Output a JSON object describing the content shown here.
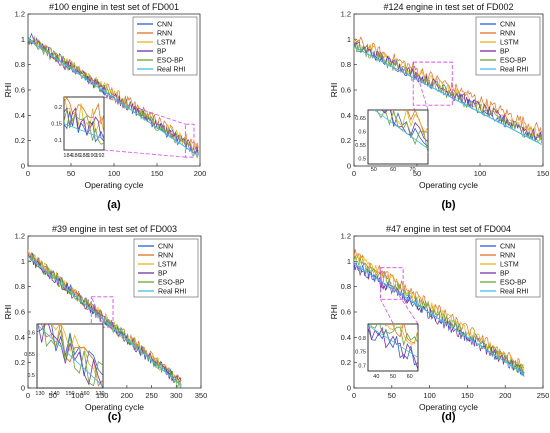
{
  "colors": {
    "CNN": "#2e5fd8",
    "RNN": "#e0702a",
    "LSTM": "#e8b320",
    "BP": "#7b2fa6",
    "ESO-BP": "#6aa53a",
    "Real RHI": "#3fc0e6",
    "zoom": "#d54fe6"
  },
  "chart_data": [
    {
      "type": "line",
      "panel_label": "(a)",
      "title": "#100 engine in test set of FD001",
      "xlabel": "Operating cycle",
      "ylabel": "RHI",
      "xlim": [
        0,
        200
      ],
      "ylim": [
        0,
        1.2
      ],
      "xticks": [
        0,
        50,
        100,
        150,
        200
      ],
      "yticks": [
        0,
        0.2,
        0.4,
        0.6,
        0.8,
        1.0,
        1.2
      ],
      "ytick_labels": [
        "0",
        "0.2",
        "0.4",
        "0.6",
        "0.8",
        "1",
        "1.2"
      ],
      "legend_position": "top-right",
      "series": [
        {
          "name": "CNN",
          "start": 1.02,
          "end": 0.1
        },
        {
          "name": "RNN",
          "start": 1.01,
          "end": 0.15
        },
        {
          "name": "LSTM",
          "start": 1.01,
          "end": 0.13
        },
        {
          "name": "BP",
          "start": 1.0,
          "end": 0.11
        },
        {
          "name": "ESO-BP",
          "start": 1.0,
          "end": 0.1
        },
        {
          "name": "Real RHI",
          "start": 1.0,
          "end": 0.08
        }
      ],
      "x_end": 198,
      "zoom": {
        "source_xlim": [
          183,
          193
        ],
        "source_ylim": [
          0.07,
          0.33
        ],
        "xticks": [
          184,
          186,
          188,
          190,
          192
        ],
        "yticks": [
          0.1,
          0.15,
          0.2
        ],
        "ylim": [
          0.07,
          0.23
        ]
      }
    },
    {
      "type": "line",
      "panel_label": "(b)",
      "title": "#124 engine in test set of FD002",
      "xlabel": "Operating cycle",
      "ylabel": "RHI",
      "xlim": [
        0,
        150
      ],
      "ylim": [
        0,
        1.2
      ],
      "xticks": [
        0,
        50,
        100,
        150
      ],
      "yticks": [
        0,
        0.2,
        0.4,
        0.6,
        0.8,
        1.0,
        1.2
      ],
      "ytick_labels": [
        "0",
        "0.2",
        "0.4",
        "0.6",
        "0.8",
        "1",
        "1.2"
      ],
      "legend_position": "top-right",
      "series": [
        {
          "name": "CNN",
          "start": 0.97,
          "end": 0.2
        },
        {
          "name": "RNN",
          "start": 1.0,
          "end": 0.28
        },
        {
          "name": "LSTM",
          "start": 0.98,
          "end": 0.24
        },
        {
          "name": "BP",
          "start": 0.96,
          "end": 0.22
        },
        {
          "name": "ESO-BP",
          "start": 0.95,
          "end": 0.2
        },
        {
          "name": "Real RHI",
          "start": 0.94,
          "end": 0.17
        }
      ],
      "x_end": 149,
      "zoom": {
        "source_xlim": [
          47,
          78
        ],
        "source_ylim": [
          0.48,
          0.82
        ],
        "xticks": [
          50,
          60,
          70
        ],
        "yticks": [
          0.5,
          0.55,
          0.6,
          0.65
        ],
        "ylim": [
          0.48,
          0.68
        ]
      }
    },
    {
      "type": "line",
      "panel_label": "(c)",
      "title": "#39 engine in test set of FD003",
      "xlabel": "Operating cycle",
      "ylabel": "RHI",
      "xlim": [
        0,
        350
      ],
      "ylim": [
        0,
        1.2
      ],
      "xticks": [
        0,
        50,
        100,
        150,
        200,
        250,
        300,
        350
      ],
      "yticks": [
        0,
        0.2,
        0.4,
        0.6,
        0.8,
        1.0,
        1.2
      ],
      "ytick_labels": [
        "0",
        "0.2",
        "0.4",
        "0.6",
        "0.8",
        "1",
        "1.2"
      ],
      "legend_position": "top-right",
      "series": [
        {
          "name": "CNN",
          "start": 1.06,
          "end": 0.03
        },
        {
          "name": "RNN",
          "start": 1.05,
          "end": 0.05
        },
        {
          "name": "LSTM",
          "start": 1.06,
          "end": 0.04
        },
        {
          "name": "BP",
          "start": 1.04,
          "end": 0.03
        },
        {
          "name": "ESO-BP",
          "start": 1.05,
          "end": 0.03
        },
        {
          "name": "Real RHI",
          "start": 1.04,
          "end": 0.02
        }
      ],
      "x_end": 310,
      "zoom": {
        "source_xlim": [
          128,
          172
        ],
        "source_ylim": [
          0.48,
          0.72
        ],
        "xticks": [
          130,
          140,
          150,
          160,
          170
        ],
        "yticks": [
          0.5,
          0.55,
          0.6
        ],
        "ylim": [
          0.47,
          0.62
        ]
      }
    },
    {
      "type": "line",
      "panel_label": "(d)",
      "title": "#47 engine in test set of FD004",
      "xlabel": "Operating cycle",
      "ylabel": "RHI",
      "xlim": [
        0,
        250
      ],
      "ylim": [
        0,
        1.2
      ],
      "xticks": [
        0,
        50,
        100,
        150,
        200,
        250
      ],
      "yticks": [
        0,
        0.2,
        0.4,
        0.6,
        0.8,
        1.0,
        1.2
      ],
      "ytick_labels": [
        "0",
        "0.2",
        "0.4",
        "0.6",
        "0.8",
        "1",
        "1.2"
      ],
      "legend_position": "top-right",
      "series": [
        {
          "name": "CNN",
          "start": 0.97,
          "end": 0.12
        },
        {
          "name": "RNN",
          "start": 1.06,
          "end": 0.16
        },
        {
          "name": "LSTM",
          "start": 1.05,
          "end": 0.14
        },
        {
          "name": "BP",
          "start": 0.96,
          "end": 0.12
        },
        {
          "name": "ESO-BP",
          "start": 1.02,
          "end": 0.13
        },
        {
          "name": "Real RHI",
          "start": 0.98,
          "end": 0.11
        }
      ],
      "x_end": 225,
      "zoom": {
        "source_xlim": [
          35,
          65
        ],
        "source_ylim": [
          0.7,
          0.95
        ],
        "xticks": [
          40,
          50,
          60
        ],
        "yticks": [
          0.7,
          0.75,
          0.8
        ],
        "ylim": [
          0.68,
          0.85
        ]
      }
    }
  ]
}
